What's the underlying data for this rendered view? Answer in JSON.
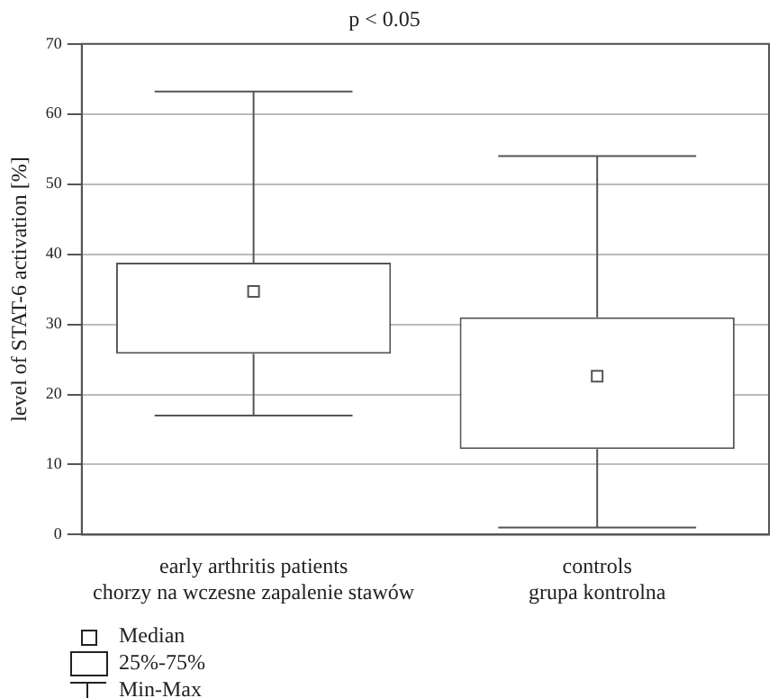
{
  "chart_data": {
    "type": "box",
    "title": "p < 0.05",
    "ylabel": "level of STAT-6 activation [%]",
    "categories": [
      "early arthritis patients\nchorzy na wczesne zapalenie stawów",
      "controls\ngrupa kontrolna"
    ],
    "boxes": [
      {
        "low": 17,
        "q1": 25.8,
        "median": 34.7,
        "q3": 38.8,
        "high": 63.2
      },
      {
        "low": 1,
        "q1": 12.2,
        "median": 22.6,
        "q3": 31,
        "high": 54
      }
    ],
    "color": "#555555",
    "ylim": [
      0,
      70
    ],
    "yticks": [
      0,
      10,
      20,
      30,
      40,
      50,
      60,
      70
    ],
    "grid": "y",
    "annotations": [
      "Median",
      "25%-75%",
      "Min-Max"
    ]
  }
}
